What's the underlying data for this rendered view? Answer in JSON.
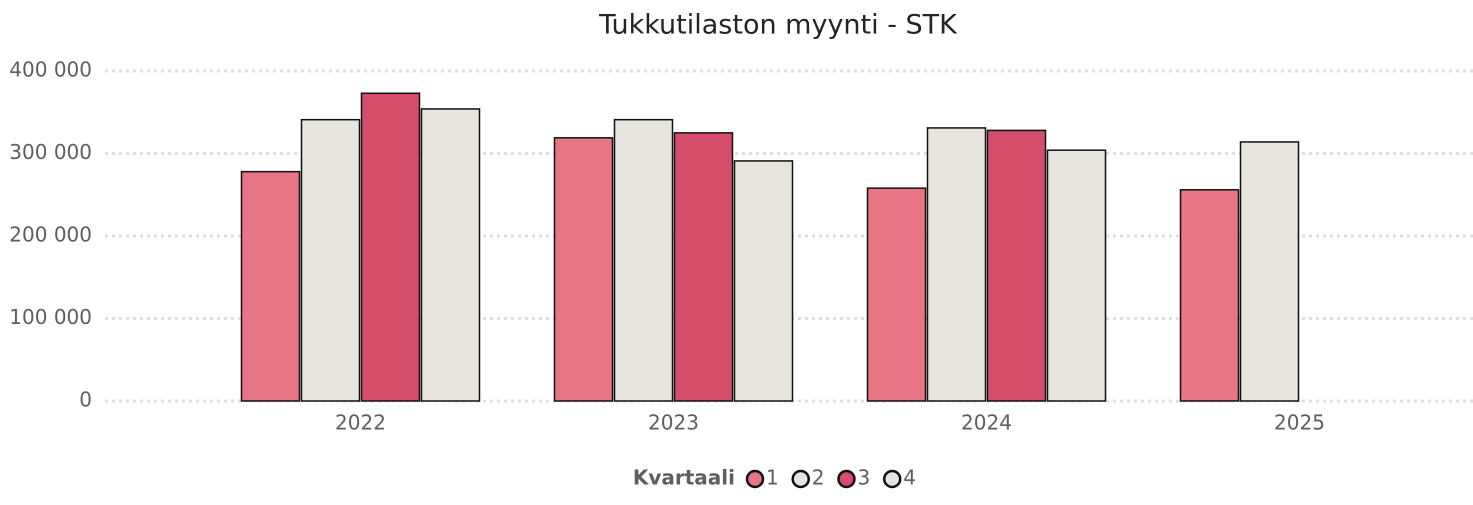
{
  "chart_data": {
    "type": "bar",
    "title": "Tukkutilaston myynti - STK",
    "categories": [
      "2022",
      "2023",
      "2024",
      "2025"
    ],
    "legend_title": "Kvartaali",
    "series": [
      {
        "name": "1",
        "color": "#e87585",
        "values": [
          278000,
          319000,
          258000,
          256000
        ]
      },
      {
        "name": "2",
        "color": "#e8e4de",
        "values": [
          341000,
          341000,
          331000,
          314000
        ]
      },
      {
        "name": "3",
        "color": "#d44d6b",
        "values": [
          373000,
          325000,
          328000,
          null
        ]
      },
      {
        "name": "4",
        "color": "#e8e4de",
        "values": [
          354000,
          291000,
          304000,
          null
        ]
      }
    ],
    "ylim": [
      0,
      400000
    ],
    "yticks": [
      0,
      {
        "value": 100000,
        "label": "100 000"
      },
      {
        "value": 200000,
        "label": "200 000"
      },
      {
        "value": 300000,
        "label": "300 000"
      },
      {
        "value": 400000,
        "label": "400 000"
      }
    ],
    "grid": true
  }
}
